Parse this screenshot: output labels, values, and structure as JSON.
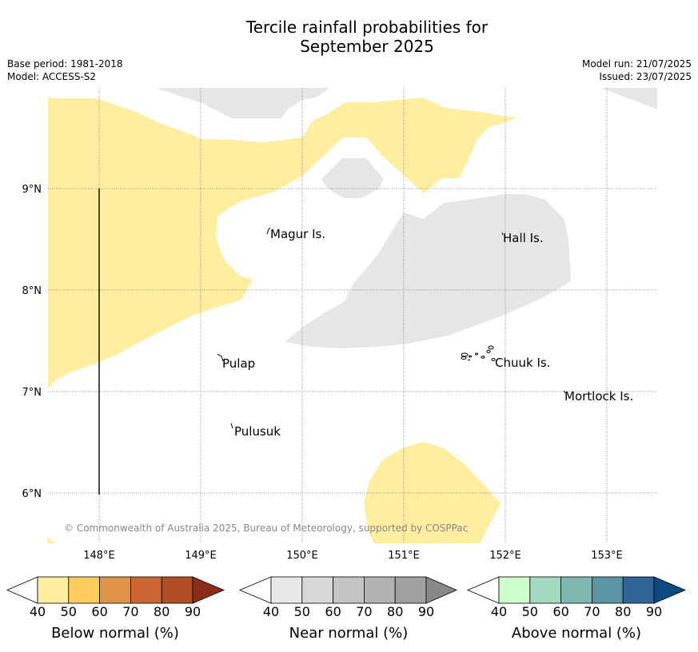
{
  "title_line1": "Tercile rainfall probabilities for",
  "title_line2": "September 2025",
  "base_period": "Base period: 1981-2018",
  "model": "Model: ACCESS-S2",
  "model_run": "Model run: 21/07/2025",
  "issued": "Issued: 23/07/2025",
  "lon_labels": [
    "148°E",
    "149°E",
    "150°E",
    "151°E",
    "152°E",
    "153°E"
  ],
  "lat_labels": [
    "9°N",
    "8°N",
    "7°N",
    "6°N"
  ],
  "places": [
    "Magur Is.",
    "Hall Is.",
    "Pulap",
    "Chuuk Is.",
    "Mortlock Is.",
    "Pulusuk"
  ],
  "copyright": "© Commonwealth of Australia 2025, Bureau of Meteorology, supported by COSPPac",
  "colorbars": [
    {
      "label": "Below normal (%)",
      "ticks": [
        "40",
        "50",
        "60",
        "70",
        "80",
        "90"
      ],
      "colors": [
        "#ffeda0",
        "#fecc5c",
        "#e09448",
        "#cc6633",
        "#b34d26",
        "#8c2d1a"
      ]
    },
    {
      "label": "Near normal (%)",
      "ticks": [
        "40",
        "50",
        "60",
        "70",
        "80",
        "90"
      ],
      "colors": [
        "#e8e8e8",
        "#d8d8d8",
        "#c4c4c4",
        "#b2b2b2",
        "#a0a0a0",
        "#888888"
      ]
    },
    {
      "label": "Above normal (%)",
      "ticks": [
        "40",
        "50",
        "60",
        "70",
        "80",
        "90"
      ],
      "colors": [
        "#ccffcc",
        "#a3d9bf",
        "#7fb8b3",
        "#5b94a3",
        "#316599",
        "#0d4a80"
      ]
    }
  ],
  "colors": {
    "below_normal_40_50": "#ffeda0",
    "near_normal_40_50": "#e6e6e6",
    "grid": "#777777"
  }
}
